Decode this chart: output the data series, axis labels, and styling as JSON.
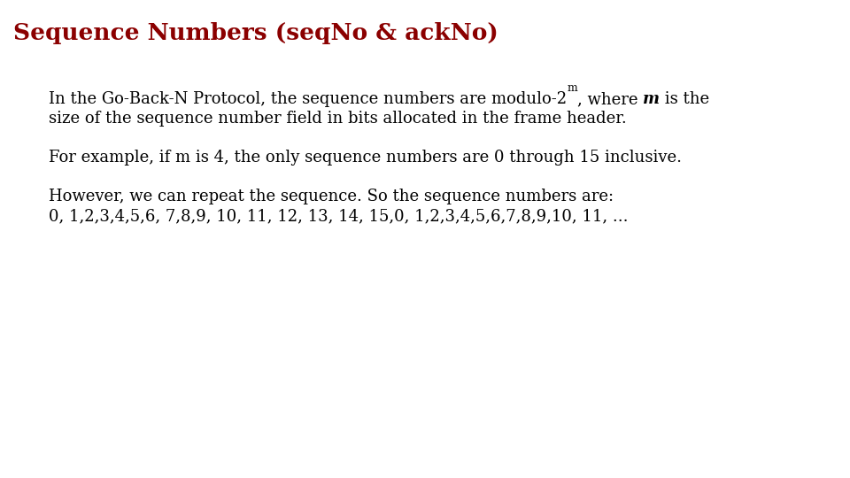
{
  "title": "Sequence Numbers (seqNo & ackNo)",
  "title_color": "#8B0000",
  "title_fontsize": 19,
  "background_color": "#ffffff",
  "text_color": "#000000",
  "text_fontsize": 13,
  "sup_fontsize": 9,
  "font_family": "DejaVu Serif",
  "line1_prefix": "In the Go-Back-N Protocol, the sequence numbers are modulo-2",
  "line1_sup": "m",
  "line1_mid": ", where ",
  "line1_italic_m": "m",
  "line1_end": " is the",
  "line2": "size of the sequence number field in bits allocated in the frame header.",
  "para2": "For example, if m is 4, the only sequence numbers are 0 through 15 inclusive.",
  "para3_l1": "However, we can repeat the sequence. So the sequence numbers are:",
  "para3_l2": "0, 1,2,3,4,5,6, 7,8,9, 10, 11, 12, 13, 14, 15,0, 1,2,3,4,5,6,7,8,9,10, 11, ..."
}
